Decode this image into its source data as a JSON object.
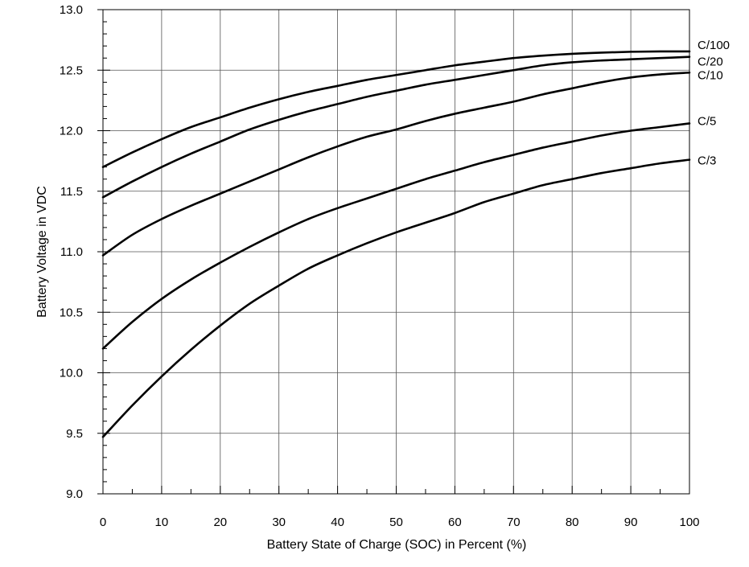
{
  "chart_data": {
    "type": "line",
    "xlabel": "Battery State of Charge (SOC) in Percent (%)",
    "ylabel": "Battery Voltage in VDC",
    "xlim": [
      0,
      100
    ],
    "ylim": [
      9.0,
      13.0
    ],
    "x_ticks": [
      0,
      10,
      20,
      30,
      40,
      50,
      60,
      70,
      80,
      90,
      100
    ],
    "x_tick_labels": [
      "0",
      "10",
      "20",
      "30",
      "40",
      "50",
      "60",
      "70",
      "80",
      "90",
      "100"
    ],
    "y_ticks": [
      9.0,
      9.5,
      10.0,
      10.5,
      11.0,
      11.5,
      12.0,
      12.5,
      13.0
    ],
    "y_tick_labels": [
      "9.0",
      "9.5",
      "10.0",
      "10.5",
      "11.0",
      "11.5",
      "12.0",
      "12.5",
      "13.0"
    ],
    "grid": true,
    "x": [
      0,
      5,
      10,
      15,
      20,
      25,
      30,
      35,
      40,
      45,
      50,
      55,
      60,
      65,
      70,
      75,
      80,
      85,
      90,
      95,
      100
    ],
    "series": [
      {
        "name": "C/100",
        "values": [
          11.7,
          11.82,
          11.93,
          12.03,
          12.11,
          12.19,
          12.26,
          12.32,
          12.37,
          12.42,
          12.46,
          12.5,
          12.54,
          12.57,
          12.6,
          12.62,
          12.635,
          12.645,
          12.652,
          12.655,
          12.655
        ]
      },
      {
        "name": "C/20",
        "values": [
          11.45,
          11.58,
          11.7,
          11.81,
          11.91,
          12.01,
          12.09,
          12.16,
          12.22,
          12.28,
          12.33,
          12.38,
          12.42,
          12.46,
          12.5,
          12.54,
          12.565,
          12.58,
          12.59,
          12.6,
          12.61
        ]
      },
      {
        "name": "C/10",
        "values": [
          10.97,
          11.14,
          11.27,
          11.38,
          11.48,
          11.58,
          11.68,
          11.78,
          11.87,
          11.95,
          12.01,
          12.08,
          12.14,
          12.19,
          12.24,
          12.3,
          12.35,
          12.4,
          12.44,
          12.465,
          12.48
        ]
      },
      {
        "name": "C/5",
        "values": [
          10.2,
          10.42,
          10.61,
          10.77,
          10.91,
          11.04,
          11.16,
          11.27,
          11.36,
          11.44,
          11.52,
          11.6,
          11.67,
          11.74,
          11.8,
          11.86,
          11.91,
          11.96,
          12.0,
          12.03,
          12.06
        ]
      },
      {
        "name": "C/3",
        "values": [
          9.47,
          9.73,
          9.97,
          10.19,
          10.39,
          10.57,
          10.72,
          10.86,
          10.97,
          11.07,
          11.16,
          11.24,
          11.32,
          11.41,
          11.48,
          11.55,
          11.6,
          11.65,
          11.69,
          11.73,
          11.76
        ]
      }
    ]
  }
}
